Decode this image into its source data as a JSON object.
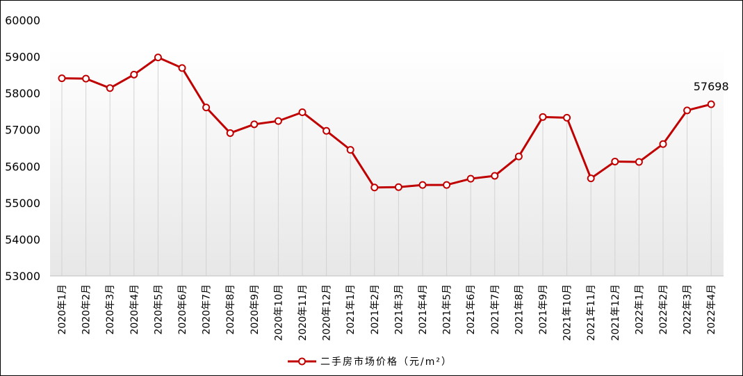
{
  "chart_data": {
    "type": "line",
    "categories": [
      "2020年1月",
      "2020年2月",
      "2020年3月",
      "2020年4月",
      "2020年5月",
      "2020年6月",
      "2020年7月",
      "2020年8月",
      "2020年9月",
      "2020年10月",
      "2020年11月",
      "2020年12月",
      "2021年1月",
      "2021年2月",
      "2021年3月",
      "2021年4月",
      "2021年5月",
      "2021年6月",
      "2021年7月",
      "2021年8月",
      "2021年9月",
      "2021年10月",
      "2021年11月",
      "2021年12月",
      "2022年1月",
      "2022年2月",
      "2022年3月",
      "2022年4月"
    ],
    "series": [
      {
        "name": "二手房市场价格（元/m²）",
        "color": "#c00000",
        "values": [
          58410,
          58400,
          58140,
          58510,
          58980,
          58690,
          57610,
          56910,
          57150,
          57240,
          57480,
          56970,
          56450,
          55420,
          55430,
          55490,
          55490,
          55660,
          55740,
          56270,
          57350,
          57330,
          55670,
          56130,
          56120,
          56610,
          57530,
          57698
        ]
      }
    ],
    "y_ticks": [
      "53000",
      "54000",
      "55000",
      "56000",
      "57000",
      "58000",
      "59000",
      "60000"
    ],
    "ylim": [
      53000,
      60000
    ],
    "data_labels": [
      {
        "index": 27,
        "text": "57698"
      }
    ],
    "legend_position": "bottom",
    "grid": "vertical"
  }
}
